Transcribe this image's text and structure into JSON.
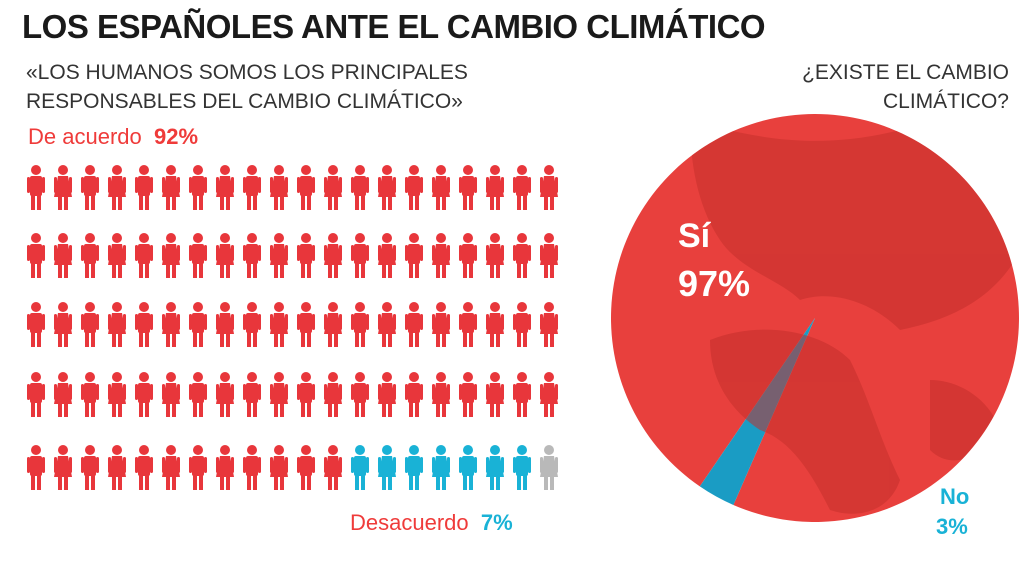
{
  "title": "LOS ESPAÑOLES ANTE EL CAMBIO CLIMÁTICO",
  "chart_data": [
    {
      "type": "pictogram",
      "title": "«LOS HUMANOS SOMOS LOS PRINCIPALES RESPONSABLES DEL CAMBIO CLIMÁTICO»",
      "categories": [
        "De acuerdo",
        "Desacuerdo"
      ],
      "values": [
        92,
        7
      ],
      "value_labels": [
        "92%",
        "7%"
      ],
      "colors": [
        "#e8363b",
        "#19b2d6"
      ]
    },
    {
      "type": "pie",
      "title": "¿EXISTE EL CAMBIO CLIMÁTICO?",
      "categories": [
        "Sí",
        "No"
      ],
      "values": [
        97,
        3
      ],
      "value_labels": [
        "97%",
        "3%"
      ],
      "colors": [
        "#e8403d",
        "#1a9cc4"
      ]
    }
  ]
}
